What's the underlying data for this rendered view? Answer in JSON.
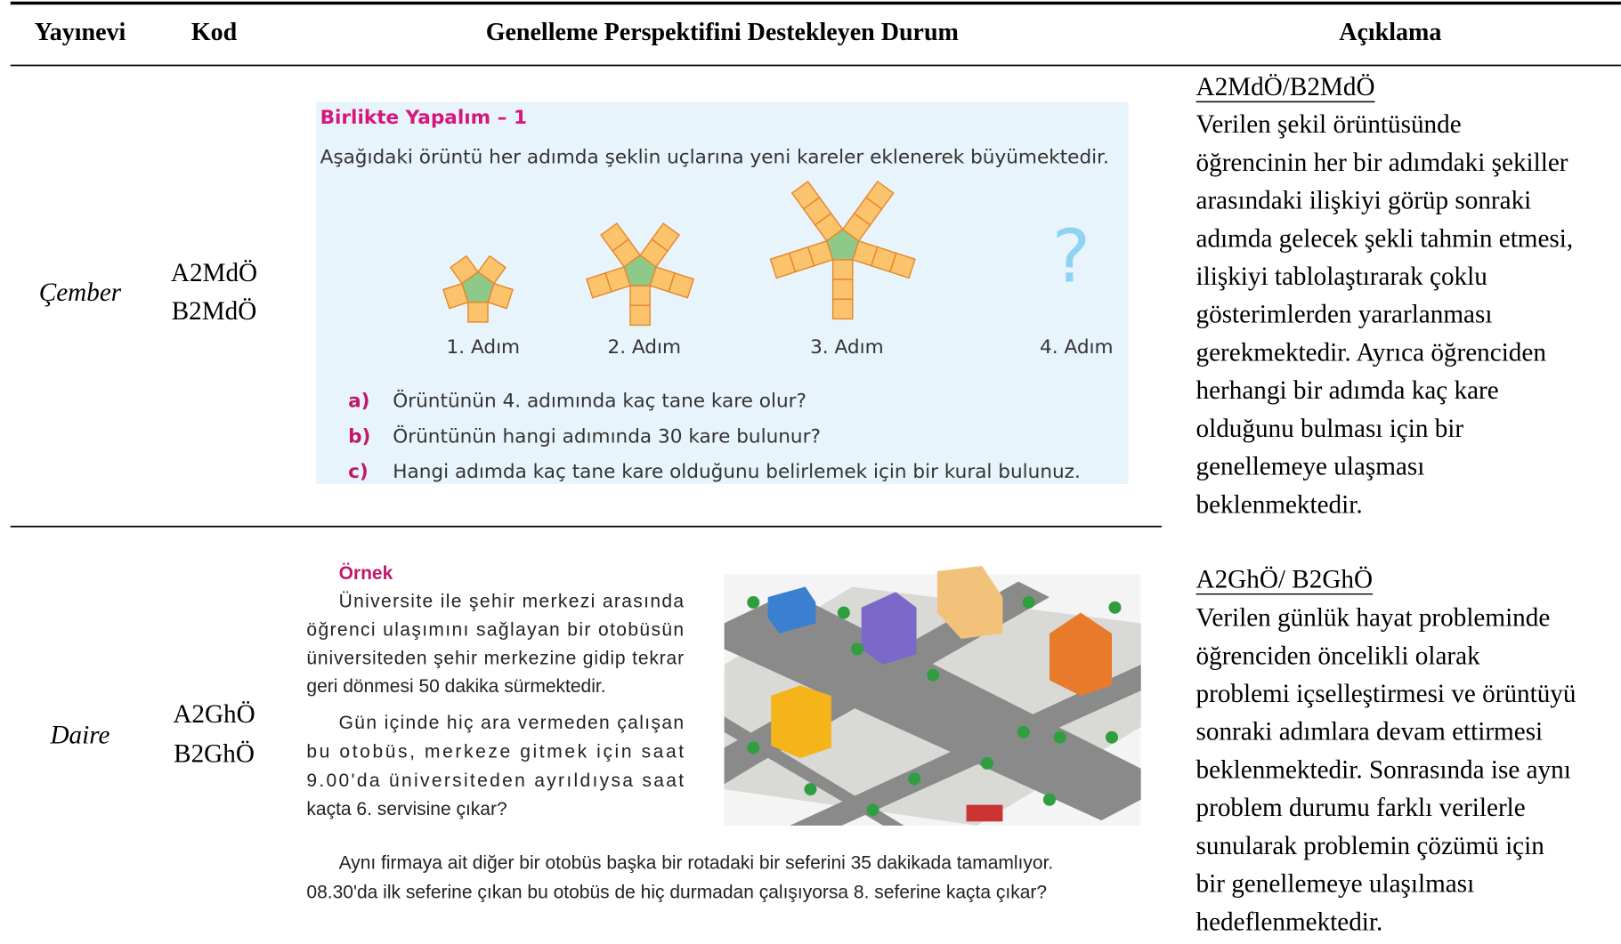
{
  "header": {
    "columns": [
      "Yayınevi",
      "Kod",
      "Genelleme Perspektifini Destekleyen Durum",
      "Açıklama"
    ]
  },
  "rows": [
    {
      "publisher": "Çember",
      "codes": [
        "A2MdÖ",
        "B2MdÖ"
      ],
      "situation": {
        "title": "Birlikte Yapalım – 1",
        "instruction": "Aşağıdaki örüntü her adımda şeklin uçlarına yeni kareler eklenerek büyümektedir.",
        "steps": [
          "1. Adım",
          "2. Adım",
          "3. Adım",
          "4. Adım"
        ],
        "unknown": "?",
        "questions": [
          {
            "label": "a)",
            "text": "Örüntünün 4. adımında kaç tane kare olur?"
          },
          {
            "label": "b)",
            "text": "Örüntünün hangi adımında 30 kare bulunur?"
          },
          {
            "label": "c)",
            "text": "Hangi adımda kaç tane kare olduğunu belirlemek için bir kural bulunuz."
          }
        ]
      },
      "explanation": {
        "heading": "A2MdÖ/B2MdÖ",
        "lines": [
          "Verilen şekil örüntüsünde",
          "öğrencinin her bir adımdaki şekiller",
          "arasındaki ilişkiyi görüp sonraki",
          "adımda gelecek şekli tahmin etmesi,",
          "ilişkiyi tablolaştırarak çoklu",
          "gösterimlerden yararlanması",
          "gerekmektedir. Ayrıca öğrenciden",
          "herhangi bir adımda kaç kare",
          "olduğunu bulması için bir",
          "genellemeye ulaşması",
          "beklenmektedir."
        ]
      }
    },
    {
      "publisher": "Daire",
      "codes": [
        "A2GhÖ",
        "B2GhÖ"
      ],
      "situation": {
        "title": "Örnek",
        "paragraphs": [
          [
            "Üniversite ile şehir merkezi arasında",
            "öğrenci ulaşımını sağlayan bir otobüsün",
            "üniversiteden şehir merkezine gidip tekrar",
            "geri dönmesi 50 dakika sürmektedir."
          ],
          [
            "Gün içinde hiç ara vermeden çalışan",
            "bu otobüs, merkeze gitmek için saat",
            "9.00'da üniversiteden ayrıldıysa saat",
            "kaçta 6. servisine çıkar?"
          ],
          [
            "Aynı firmaya ait diğer bir otobüs başka bir rotadaki bir seferini 35 dakikada tamamlıyor.",
            "08.30'da ilk seferine çıkan bu otobüs de hiç durmadan çalışıyorsa 8. seferine kaçta çıkar?"
          ]
        ]
      },
      "explanation": {
        "heading": "A2GhÖ/ B2GhÖ",
        "lines": [
          "Verilen günlük hayat probleminde",
          "öğrenciden öncelikli olarak",
          "problemi içselleştirmesi ve örüntüyü",
          "sonraki adımlara devam ettirmesi",
          "beklenmektedir. Sonrasında ise aynı",
          "problem durumu farklı verilerle",
          "sunularak problemin çözümü için",
          "bir genellemeye ulaşılması",
          "hedeflenmektedir."
        ]
      }
    }
  ]
}
